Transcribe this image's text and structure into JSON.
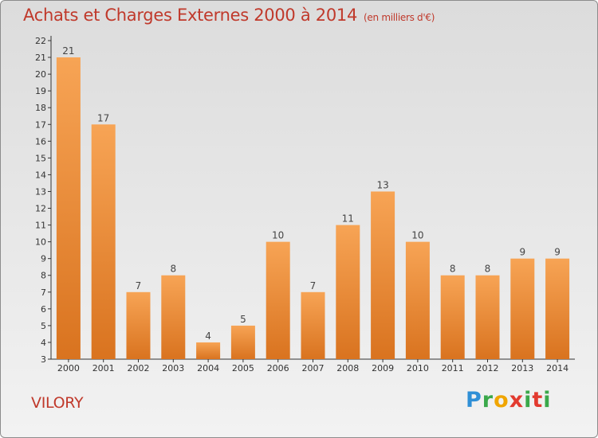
{
  "header": {
    "title": "Achats et Charges Externes 2000 à 2014",
    "subtitle": "(en milliers d'€)"
  },
  "footer": {
    "commune": "VILORY",
    "brand": "Proxiti"
  },
  "colors": {
    "title": "#c0392b",
    "bar_light": "#f7a455",
    "bar_dark": "#d9731f"
  },
  "chart_data": {
    "type": "bar",
    "title": "Achats et Charges Externes 2000 à 2014",
    "subtitle": "(en milliers d'€)",
    "categories": [
      "2000",
      "2001",
      "2002",
      "2003",
      "2004",
      "2005",
      "2006",
      "2007",
      "2008",
      "2009",
      "2010",
      "2011",
      "2012",
      "2013",
      "2014"
    ],
    "values": [
      21,
      17,
      7,
      8,
      4,
      5,
      10,
      7,
      11,
      13,
      10,
      8,
      8,
      9,
      9
    ],
    "ylim": [
      3,
      22
    ],
    "yticks": [
      3,
      4,
      5,
      6,
      7,
      8,
      9,
      10,
      11,
      12,
      13,
      14,
      15,
      16,
      17,
      18,
      19,
      20,
      21,
      22
    ],
    "grid": false,
    "xlabel": "",
    "ylabel": ""
  }
}
